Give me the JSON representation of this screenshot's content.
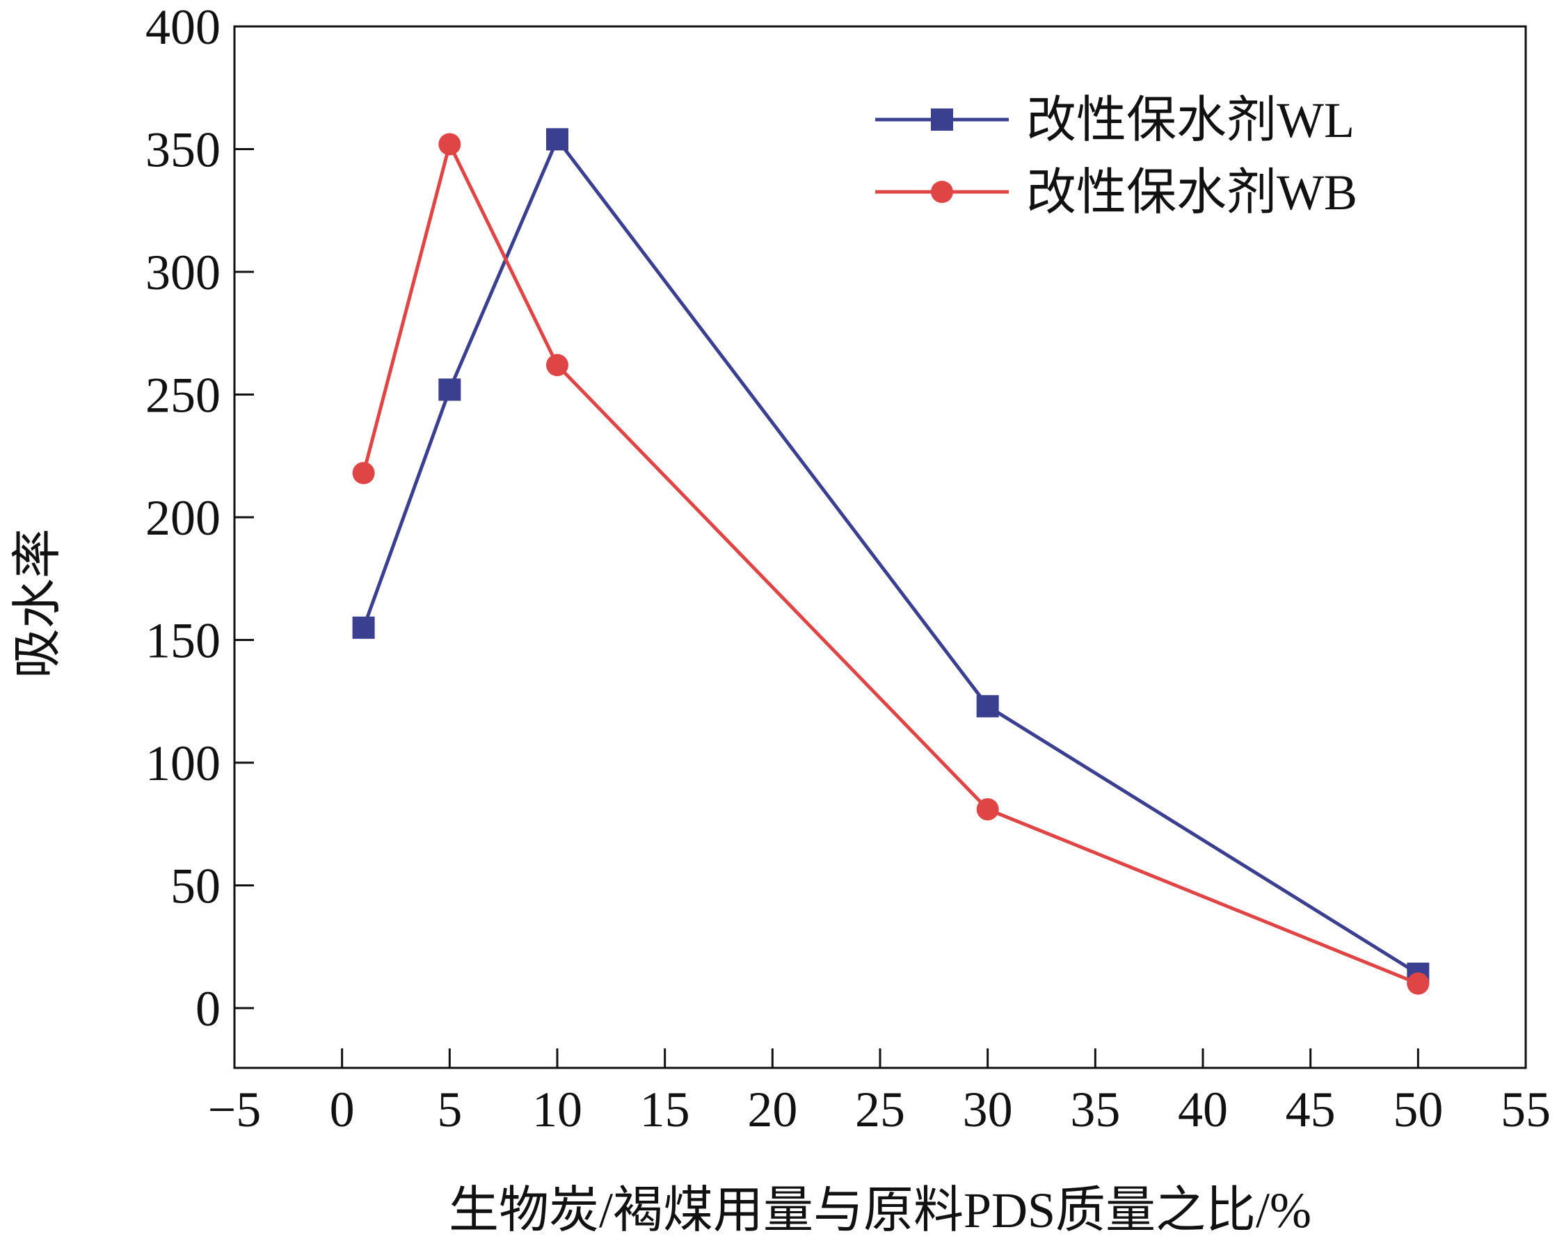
{
  "chart_data": {
    "type": "line",
    "title": "",
    "xlabel": "生物炭/褐煤用量与原料PDS质量之比/%",
    "ylabel": "吸水率",
    "xlim": [
      -5,
      55
    ],
    "ylim": [
      -25,
      400
    ],
    "x_ticks": [
      -5,
      0,
      5,
      10,
      15,
      20,
      25,
      30,
      35,
      40,
      45,
      50,
      55
    ],
    "x_tick_labels": [
      "−5",
      "0",
      "5",
      "10",
      "15",
      "20",
      "25",
      "30",
      "35",
      "40",
      "45",
      "50",
      "55"
    ],
    "y_ticks": [
      0,
      50,
      100,
      150,
      200,
      250,
      300,
      350,
      400
    ],
    "y_tick_labels": [
      "0",
      "50",
      "100",
      "150",
      "200",
      "250",
      "300",
      "350",
      "400"
    ],
    "grid": false,
    "legend_position": "top-right",
    "series": [
      {
        "name": "改性保水剂WL",
        "marker": "square",
        "color": "#3a3f8f",
        "x": [
          1,
          5,
          10,
          30,
          50
        ],
        "values": [
          155,
          252,
          354,
          123,
          14
        ]
      },
      {
        "name": "改性保水剂WB",
        "marker": "circle",
        "color": "#e04545",
        "x": [
          1,
          5,
          10,
          30,
          50
        ],
        "values": [
          218,
          352,
          262,
          81,
          10
        ]
      }
    ]
  }
}
